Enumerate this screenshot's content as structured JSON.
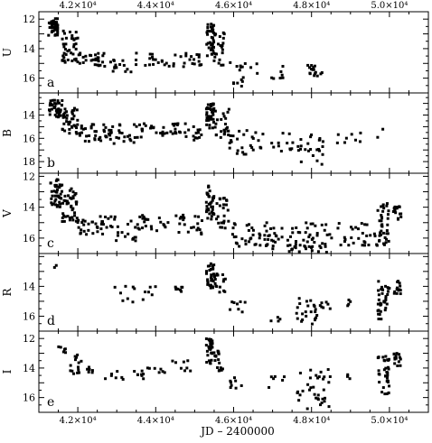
{
  "figure": {
    "xlabel": "JD – 2400000",
    "x_tick_labels": [
      "4.2×10⁴",
      "4.4×10⁴",
      "4.6×10⁴",
      "4.8×10⁴",
      "5.0×10⁴"
    ],
    "x_tick_values": [
      42000,
      44000,
      46000,
      48000,
      50000
    ],
    "xlim": [
      41000,
      51000
    ],
    "marker_color": "#000000"
  },
  "chart_data": [
    {
      "type": "scatter",
      "panel": "a",
      "ylabel": "U",
      "ylim": [
        17,
        11.5
      ],
      "yticks": [
        12,
        14,
        16
      ],
      "clusters": [
        {
          "x": [
            41250,
            41500
          ],
          "y": [
            11.9,
            13.2
          ],
          "n": 40
        },
        {
          "x": [
            41600,
            42000
          ],
          "y": [
            12.8,
            15.0
          ],
          "n": 40
        },
        {
          "x": [
            42000,
            42700
          ],
          "y": [
            14.3,
            15.2
          ],
          "n": 28
        },
        {
          "x": [
            42800,
            43500
          ],
          "y": [
            14.7,
            15.6
          ],
          "n": 16
        },
        {
          "x": [
            43500,
            44500
          ],
          "y": [
            14.3,
            15.2
          ],
          "n": 18
        },
        {
          "x": [
            44500,
            45200
          ],
          "y": [
            14.3,
            15.3
          ],
          "n": 18
        },
        {
          "x": [
            45300,
            45500
          ],
          "y": [
            12.3,
            14.6
          ],
          "n": 36
        },
        {
          "x": [
            45500,
            45800
          ],
          "y": [
            12.9,
            15.2
          ],
          "n": 22
        },
        {
          "x": [
            45900,
            46300
          ],
          "y": [
            14.6,
            16.6
          ],
          "n": 14
        },
        {
          "x": [
            46400,
            47400
          ],
          "y": [
            15.0,
            16.2
          ],
          "n": 10
        },
        {
          "x": [
            47800,
            48300
          ],
          "y": [
            15.0,
            16.1
          ],
          "n": 16
        }
      ]
    },
    {
      "type": "scatter",
      "panel": "b",
      "ylabel": "B",
      "ylim": [
        19,
        12.1
      ],
      "yticks": [
        14,
        16,
        18
      ],
      "clusters": [
        {
          "x": [
            41250,
            41600
          ],
          "y": [
            12.7,
            14.2
          ],
          "n": 40
        },
        {
          "x": [
            41600,
            42000
          ],
          "y": [
            13.4,
            15.6
          ],
          "n": 40
        },
        {
          "x": [
            42000,
            42800
          ],
          "y": [
            14.8,
            16.3
          ],
          "n": 32
        },
        {
          "x": [
            42800,
            43500
          ],
          "y": [
            14.8,
            16.5
          ],
          "n": 24
        },
        {
          "x": [
            43500,
            44500
          ],
          "y": [
            14.7,
            16.0
          ],
          "n": 26
        },
        {
          "x": [
            44500,
            45200
          ],
          "y": [
            14.7,
            16.2
          ],
          "n": 24
        },
        {
          "x": [
            45300,
            45500
          ],
          "y": [
            13.0,
            15.2
          ],
          "n": 36
        },
        {
          "x": [
            45500,
            45900
          ],
          "y": [
            13.4,
            16.1
          ],
          "n": 24
        },
        {
          "x": [
            45900,
            46800
          ],
          "y": [
            15.3,
            17.4
          ],
          "n": 26
        },
        {
          "x": [
            46900,
            47700
          ],
          "y": [
            15.5,
            17.2
          ],
          "n": 14
        },
        {
          "x": [
            47700,
            48300
          ],
          "y": [
            15.6,
            18.3
          ],
          "n": 22
        },
        {
          "x": [
            48500,
            50000
          ],
          "y": [
            15.0,
            16.7
          ],
          "n": 10
        }
      ]
    },
    {
      "type": "scatter",
      "panel": "c",
      "ylabel": "V",
      "ylim": [
        17,
        11.8
      ],
      "yticks": [
        12,
        14,
        16
      ],
      "clusters": [
        {
          "x": [
            41300,
            41600
          ],
          "y": [
            12.2,
            14.0
          ],
          "n": 40
        },
        {
          "x": [
            41600,
            42000
          ],
          "y": [
            12.8,
            15.0
          ],
          "n": 40
        },
        {
          "x": [
            42000,
            42800
          ],
          "y": [
            14.6,
            15.8
          ],
          "n": 30
        },
        {
          "x": [
            42800,
            43500
          ],
          "y": [
            14.6,
            16.2
          ],
          "n": 20
        },
        {
          "x": [
            43500,
            44500
          ],
          "y": [
            14.5,
            15.6
          ],
          "n": 24
        },
        {
          "x": [
            44500,
            45200
          ],
          "y": [
            14.4,
            15.8
          ],
          "n": 22
        },
        {
          "x": [
            45300,
            45500
          ],
          "y": [
            12.6,
            14.8
          ],
          "n": 36
        },
        {
          "x": [
            45500,
            45900
          ],
          "y": [
            13.0,
            15.4
          ],
          "n": 24
        },
        {
          "x": [
            45900,
            47000
          ],
          "y": [
            15.0,
            16.6
          ],
          "n": 40
        },
        {
          "x": [
            47000,
            47600
          ],
          "y": [
            15.1,
            16.9
          ],
          "n": 24
        },
        {
          "x": [
            47600,
            48500
          ],
          "y": [
            15.0,
            17.0
          ],
          "n": 40
        },
        {
          "x": [
            48500,
            49700
          ],
          "y": [
            15.0,
            16.6
          ],
          "n": 30
        },
        {
          "x": [
            49700,
            50000
          ],
          "y": [
            13.7,
            16.5
          ],
          "n": 36
        },
        {
          "x": [
            50100,
            50300
          ],
          "y": [
            13.9,
            15.0
          ],
          "n": 16
        }
      ]
    },
    {
      "type": "scatter",
      "panel": "d",
      "ylabel": "R",
      "ylim": [
        17,
        11.8
      ],
      "yticks": [
        14,
        16
      ],
      "clusters": [
        {
          "x": [
            41400,
            41500
          ],
          "y": [
            12.5,
            12.9
          ],
          "n": 2
        },
        {
          "x": [
            42800,
            43800
          ],
          "y": [
            13.9,
            15.1
          ],
          "n": 10
        },
        {
          "x": [
            43800,
            44000
          ],
          "y": [
            14.0,
            14.6
          ],
          "n": 4
        },
        {
          "x": [
            44500,
            44700
          ],
          "y": [
            14.0,
            14.6
          ],
          "n": 8
        },
        {
          "x": [
            45300,
            45500
          ],
          "y": [
            12.4,
            14.2
          ],
          "n": 30
        },
        {
          "x": [
            45500,
            45800
          ],
          "y": [
            13.0,
            14.4
          ],
          "n": 16
        },
        {
          "x": [
            45900,
            46300
          ],
          "y": [
            14.9,
            15.8
          ],
          "n": 8
        },
        {
          "x": [
            46900,
            47300
          ],
          "y": [
            15.5,
            16.8
          ],
          "n": 4
        },
        {
          "x": [
            47600,
            48500
          ],
          "y": [
            14.8,
            16.6
          ],
          "n": 30
        },
        {
          "x": [
            48900,
            49000
          ],
          "y": [
            14.7,
            15.4
          ],
          "n": 4
        },
        {
          "x": [
            49700,
            50000
          ],
          "y": [
            13.6,
            16.2
          ],
          "n": 36
        },
        {
          "x": [
            50100,
            50300
          ],
          "y": [
            13.6,
            14.5
          ],
          "n": 14
        }
      ]
    },
    {
      "type": "scatter",
      "panel": "e",
      "ylabel": "I",
      "ylim": [
        17,
        11.5
      ],
      "yticks": [
        12,
        14,
        16
      ],
      "clusters": [
        {
          "x": [
            41500,
            41700
          ],
          "y": [
            12.2,
            13.0
          ],
          "n": 6
        },
        {
          "x": [
            41800,
            42100
          ],
          "y": [
            13.0,
            14.4
          ],
          "n": 14
        },
        {
          "x": [
            42200,
            42400
          ],
          "y": [
            13.8,
            14.5
          ],
          "n": 6
        },
        {
          "x": [
            42700,
            43800
          ],
          "y": [
            13.9,
            14.8
          ],
          "n": 16
        },
        {
          "x": [
            43800,
            44900
          ],
          "y": [
            13.5,
            14.4
          ],
          "n": 14
        },
        {
          "x": [
            45300,
            45500
          ],
          "y": [
            11.9,
            13.8
          ],
          "n": 30
        },
        {
          "x": [
            45500,
            45800
          ],
          "y": [
            12.8,
            14.2
          ],
          "n": 16
        },
        {
          "x": [
            45900,
            46300
          ],
          "y": [
            14.6,
            15.6
          ],
          "n": 8
        },
        {
          "x": [
            46900,
            47300
          ],
          "y": [
            14.2,
            15.4
          ],
          "n": 6
        },
        {
          "x": [
            47600,
            48500
          ],
          "y": [
            14.1,
            16.9
          ],
          "n": 34
        },
        {
          "x": [
            48900,
            49000
          ],
          "y": [
            14.2,
            14.8
          ],
          "n": 4
        },
        {
          "x": [
            49700,
            50000
          ],
          "y": [
            13.2,
            15.8
          ],
          "n": 36
        },
        {
          "x": [
            50100,
            50300
          ],
          "y": [
            13.0,
            14.0
          ],
          "n": 14
        }
      ]
    }
  ]
}
